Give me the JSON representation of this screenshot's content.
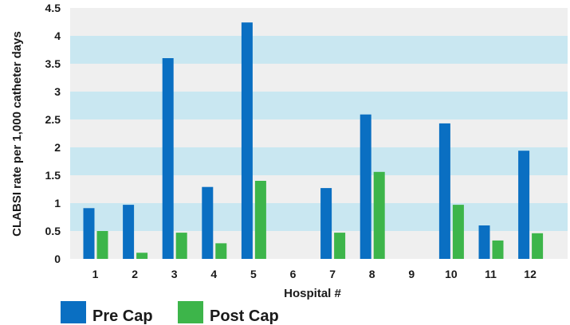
{
  "chart_data": {
    "type": "bar",
    "title": "",
    "xlabel": "Hospital #",
    "ylabel": "CLABSI rate per 1,000 catheter days",
    "categories": [
      "1",
      "2",
      "3",
      "4",
      "5",
      "6",
      "7",
      "8",
      "9",
      "10",
      "11",
      "12"
    ],
    "yticks": [
      "0",
      "0.5",
      "1",
      "1.5",
      "2",
      "2.5",
      "3",
      "3.5",
      "4",
      "4.5"
    ],
    "ylim": [
      0,
      4.5
    ],
    "grid": "alternating horizontal bands",
    "legend_position": "bottom-left",
    "colors": {
      "band_light": "#c9e7f1",
      "band_alt": "#efefef"
    },
    "series": [
      {
        "name": "Pre Cap",
        "color": "#0a6fc2",
        "values": [
          0.91,
          0.97,
          3.6,
          1.29,
          4.24,
          0,
          1.27,
          2.59,
          0,
          2.43,
          0.6,
          1.94
        ]
      },
      {
        "name": "Post Cap",
        "color": "#3db54a",
        "values": [
          0.5,
          0.11,
          0.47,
          0.28,
          1.4,
          0,
          0.47,
          1.56,
          0,
          0.97,
          0.33,
          0.46
        ]
      }
    ]
  }
}
